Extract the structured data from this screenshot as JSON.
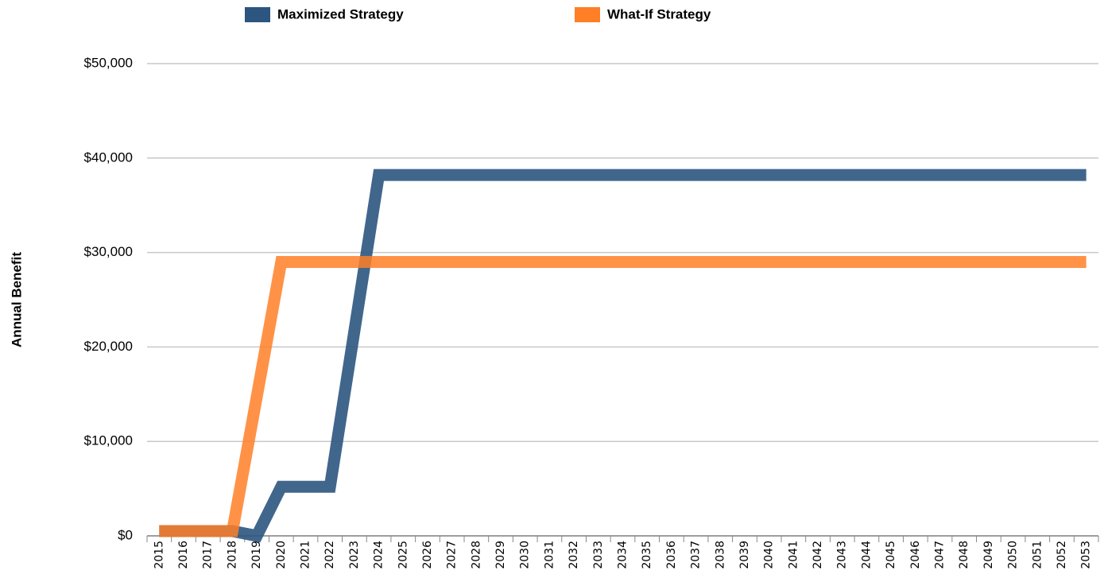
{
  "chart_data": {
    "type": "line",
    "y_label": "Annual Benefit",
    "categories": [
      "2015",
      "2016",
      "2017",
      "2018",
      "2019",
      "2020",
      "2021",
      "2022",
      "2023",
      "2024",
      "2025",
      "2026",
      "2027",
      "2028",
      "2029",
      "2030",
      "2031",
      "2032",
      "2033",
      "2034",
      "2035",
      "2036",
      "2037",
      "2038",
      "2039",
      "2040",
      "2041",
      "2042",
      "2043",
      "2044",
      "2045",
      "2046",
      "2047",
      "2048",
      "2049",
      "2050",
      "2051",
      "2052",
      "2053"
    ],
    "series": [
      {
        "name": "Maximized Strategy",
        "color": "#2c5580",
        "values": [
          500,
          500,
          500,
          500,
          0,
          5200,
          5200,
          5200,
          21700,
          38200,
          38200,
          38200,
          38200,
          38200,
          38200,
          38200,
          38200,
          38200,
          38200,
          38200,
          38200,
          38200,
          38200,
          38200,
          38200,
          38200,
          38200,
          38200,
          38200,
          38200,
          38200,
          38200,
          38200,
          38200,
          38200,
          38200,
          38200,
          38200,
          38200
        ]
      },
      {
        "name": "What-If Strategy",
        "color": "#ff7f27",
        "values": [
          500,
          500,
          500,
          500,
          14750,
          29000,
          29000,
          29000,
          29000,
          29000,
          29000,
          29000,
          29000,
          29000,
          29000,
          29000,
          29000,
          29000,
          29000,
          29000,
          29000,
          29000,
          29000,
          29000,
          29000,
          29000,
          29000,
          29000,
          29000,
          29000,
          29000,
          29000,
          29000,
          29000,
          29000,
          29000,
          29000,
          29000,
          29000
        ]
      }
    ],
    "ylim": [
      0,
      50000
    ],
    "yticks": [
      {
        "value": 0,
        "label": "$0"
      },
      {
        "value": 10000,
        "label": "$10,000"
      },
      {
        "value": 20000,
        "label": "$20,000"
      },
      {
        "value": 30000,
        "label": "$30,000"
      },
      {
        "value": 40000,
        "label": "$40,000"
      },
      {
        "value": 50000,
        "label": "$50,000"
      }
    ],
    "grid": true
  }
}
